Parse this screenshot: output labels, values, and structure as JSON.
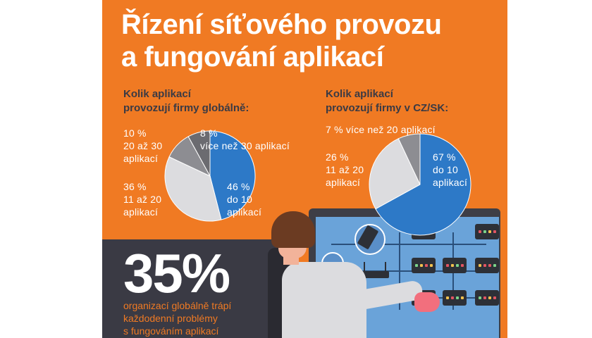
{
  "title": {
    "line1": "Řízení síťového provozu",
    "line2": "a fungování aplikací"
  },
  "global": {
    "question_line1": "Kolik aplikací",
    "question_line2": "provozují firmy globálně:",
    "labels": {
      "s8_pct": "8 %",
      "s8_text": "více než 30 aplikací",
      "s10_pct": "10 %",
      "s10_l1": "20 až 30",
      "s10_l2": "aplikací",
      "s36_pct": "36 %",
      "s36_l1": "11 až 20",
      "s36_l2": "aplikací",
      "s46_pct": "46 %",
      "s46_l1": "do 10",
      "s46_l2": "aplikací"
    }
  },
  "czsk": {
    "question_line1": "Kolik aplikací",
    "question_line2": "provozují firmy v CZ/SK:",
    "labels": {
      "s7": "7 % více než 20 aplikací",
      "s26_pct": "26 %",
      "s26_l1": "11 až 20",
      "s26_l2": "aplikací",
      "s67_pct": "67 %",
      "s67_l1": "do 10",
      "s67_l2": "aplikací"
    }
  },
  "stat": {
    "value": "35%",
    "caption_line1": "organizací globálně trápí",
    "caption_line2": "každodenní problémy",
    "caption_line3": "s fungováním aplikací"
  },
  "colors": {
    "orange": "#f07a23",
    "blue": "#2d79c7",
    "light_gray": "#dcdcdf",
    "mid_gray": "#8d8d92",
    "dark_gray": "#6b6b70",
    "dark_panel": "#3a3a44"
  },
  "chart_data": [
    {
      "type": "pie",
      "title": "Kolik aplikací provozují firmy globálně:",
      "categories": [
        "do 10 aplikací",
        "11 až 20 aplikací",
        "20 až 30 aplikací",
        "více než 30 aplikací"
      ],
      "values": [
        46,
        36,
        10,
        8
      ],
      "unit": "%"
    },
    {
      "type": "pie",
      "title": "Kolik aplikací provozují firmy v CZ/SK:",
      "categories": [
        "do 10 aplikací",
        "11 až 20 aplikací",
        "více než 20 aplikací"
      ],
      "values": [
        67,
        26,
        7
      ],
      "unit": "%"
    }
  ]
}
